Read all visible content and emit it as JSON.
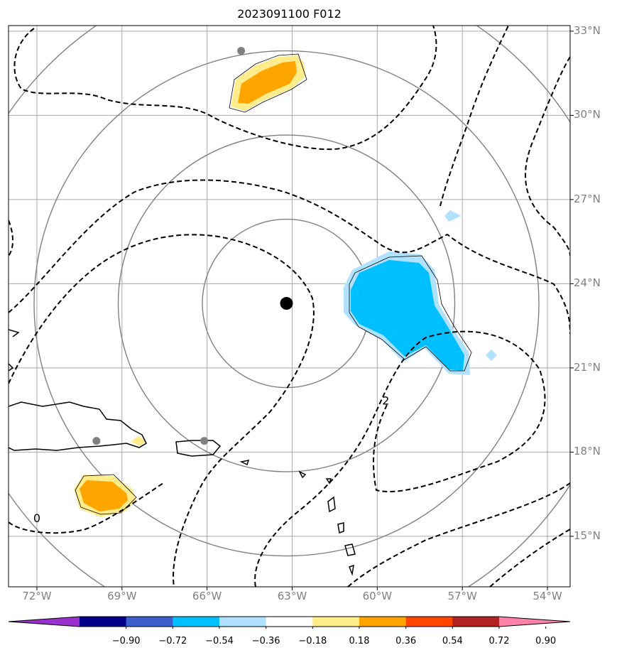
{
  "title": "2023091100 F012",
  "map": {
    "region": {
      "lon_min": -73,
      "lon_max": -53.2,
      "lat_min": 13.2,
      "lat_max": 33.2
    },
    "storm_center": {
      "lon": -63.2,
      "lat": 23.3
    },
    "range_ring_degrees": [
      3,
      6,
      9,
      12
    ],
    "gray_points": [
      {
        "lon": -64.8,
        "lat": 32.3
      },
      {
        "lon": -69.9,
        "lat": 18.4
      },
      {
        "lon": -66.1,
        "lat": 18.4
      }
    ],
    "contour_labels": [
      {
        "text": "0",
        "lon": -72.0,
        "lat": 15.5
      },
      {
        "text": "2",
        "lon": -59.7,
        "lat": 19.7
      }
    ]
  },
  "lat_labels": [
    "33°N",
    "30°N",
    "27°N",
    "24°N",
    "21°N",
    "18°N",
    "15°N"
  ],
  "lat_values": [
    33,
    30,
    27,
    24,
    21,
    18,
    15
  ],
  "lon_labels": [
    "72°W",
    "69°W",
    "66°W",
    "63°W",
    "60°W",
    "57°W",
    "54°W"
  ],
  "lon_values": [
    -72,
    -69,
    -66,
    -63,
    -60,
    -57,
    -54
  ],
  "colorbar": {
    "labels": [
      "−0.90",
      "−0.72",
      "−0.54",
      "−0.36",
      "−0.18",
      "0.18",
      "0.36",
      "0.54",
      "0.72",
      "0.90"
    ],
    "colors": [
      "#9932cc",
      "#00008b",
      "#3a5fcd",
      "#00bfff",
      "#b0e2ff",
      "#ffffff",
      "#ffec8b",
      "#ffa500",
      "#ff4500",
      "#b22222",
      "#ff82ab"
    ]
  }
}
